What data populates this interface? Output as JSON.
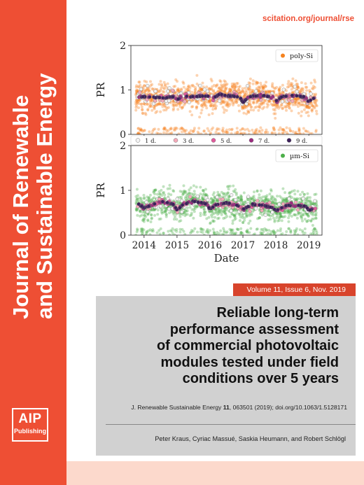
{
  "spine": {
    "line1": "Journal of Renewable",
    "line2": "and Sustainable Energy"
  },
  "logo": {
    "line1": "AIP",
    "line2": "Publishing"
  },
  "url": "scitation.org/journal/rse",
  "volume_label": "Volume 11, Issue 6, Nov. 2019",
  "article": {
    "title_lines": [
      "Reliable long-term",
      "performance assessment",
      "of commercial photovoltaic",
      "modules tested under field",
      "conditions over 5 years"
    ],
    "citation_prefix": "J. Renewable Sustainable Energy ",
    "citation_volume": "11",
    "citation_suffix": ", 063501 (2019); doi.org/10.1063/1.5128171",
    "authors": "Peter Kraus, Cyriac Massué, Saskia Heumann, and Robert Schlögl"
  },
  "chart_data": [
    {
      "type": "scatter",
      "ylabel": "PR",
      "ylim": [
        0,
        2
      ],
      "yticks": [
        "0",
        "1",
        "2"
      ],
      "xlim": [
        2013.6,
        2019.4
      ],
      "legend": {
        "label": "poly-Si",
        "position": "top-right"
      },
      "series": [
        {
          "name": "poly-Si",
          "color": "#f5821f",
          "trend": [
            [
              2013.8,
              0.85
            ],
            [
              2014.2,
              0.84
            ],
            [
              2014.6,
              0.82
            ],
            [
              2014.9,
              0.85
            ],
            [
              2015.0,
              0.78
            ],
            [
              2015.2,
              0.86
            ],
            [
              2015.6,
              0.85
            ],
            [
              2015.9,
              0.87
            ],
            [
              2016.1,
              0.82
            ],
            [
              2016.3,
              0.9
            ],
            [
              2016.6,
              0.86
            ],
            [
              2016.9,
              0.85
            ],
            [
              2017.0,
              0.72
            ],
            [
              2017.2,
              0.85
            ],
            [
              2017.6,
              0.87
            ],
            [
              2017.9,
              0.84
            ],
            [
              2018.0,
              0.74
            ],
            [
              2018.2,
              0.86
            ],
            [
              2018.6,
              0.88
            ],
            [
              2018.9,
              0.83
            ],
            [
              2019.0,
              0.73
            ],
            [
              2019.2,
              0.85
            ]
          ]
        }
      ]
    },
    {
      "type": "scatter",
      "ylabel": "PR",
      "xlabel": "Date",
      "ylim": [
        0,
        2
      ],
      "yticks": [
        "0",
        "1",
        "2"
      ],
      "xlim": [
        2013.6,
        2019.4
      ],
      "xticks": [
        "2014",
        "2015",
        "2016",
        "2017",
        "2018",
        "2019"
      ],
      "legend": {
        "label": "µm-Si",
        "position": "top-right"
      },
      "series": [
        {
          "name": "µm-Si",
          "color": "#4daf4a",
          "trend": [
            [
              2013.8,
              0.72
            ],
            [
              2014.0,
              0.6
            ],
            [
              2014.3,
              0.7
            ],
            [
              2014.6,
              0.75
            ],
            [
              2014.9,
              0.68
            ],
            [
              2015.0,
              0.55
            ],
            [
              2015.2,
              0.7
            ],
            [
              2015.5,
              0.76
            ],
            [
              2015.9,
              0.7
            ],
            [
              2016.0,
              0.58
            ],
            [
              2016.2,
              0.68
            ],
            [
              2016.5,
              0.72
            ],
            [
              2016.9,
              0.65
            ],
            [
              2017.0,
              0.58
            ],
            [
              2017.3,
              0.68
            ],
            [
              2017.6,
              0.66
            ],
            [
              2017.9,
              0.62
            ],
            [
              2018.0,
              0.55
            ],
            [
              2018.3,
              0.66
            ],
            [
              2018.6,
              0.68
            ],
            [
              2018.9,
              0.64
            ],
            [
              2019.0,
              0.55
            ],
            [
              2019.2,
              0.62
            ]
          ]
        }
      ]
    }
  ],
  "shared_legend": {
    "entries": [
      {
        "label": "1 d.",
        "color": "#f2f2f2"
      },
      {
        "label": "3 d.",
        "color": "#f4a9b8"
      },
      {
        "label": "5 d.",
        "color": "#e05a9b"
      },
      {
        "label": "7 d.",
        "color": "#9b2a7e"
      },
      {
        "label": "9 d.",
        "color": "#3c1f5a"
      }
    ]
  },
  "colors": {
    "spine": "#ee4f34",
    "volume_bar": "#d8442c",
    "gray_box": "#d1d1d1",
    "footer": "#fcd9cc"
  }
}
